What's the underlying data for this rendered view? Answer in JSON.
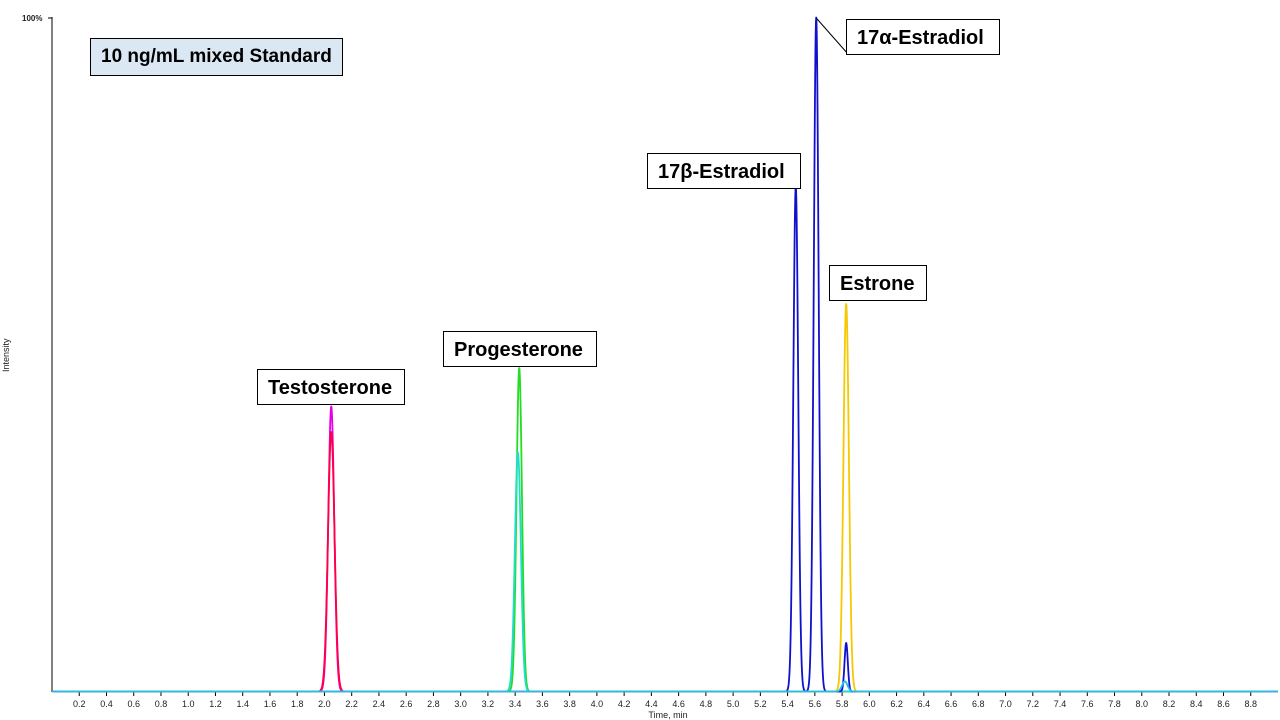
{
  "chart_data": {
    "type": "line",
    "title": "10 ng/mL mixed Standard",
    "xlabel": "Time, min",
    "ylabel": "Intensity",
    "ymax_label": "100%",
    "xlim": [
      0,
      9.0
    ],
    "ylim": [
      0,
      100
    ],
    "x_ticks": [
      0.2,
      0.4,
      0.6,
      0.8,
      1.0,
      1.2,
      1.4,
      1.6,
      1.8,
      2.0,
      2.2,
      2.4,
      2.6,
      2.8,
      3.0,
      3.2,
      3.4,
      3.6,
      3.8,
      4.0,
      4.2,
      4.4,
      4.6,
      4.8,
      5.0,
      5.2,
      5.4,
      5.6,
      5.8,
      6.0,
      6.2,
      6.4,
      6.6,
      6.8,
      7.0,
      7.2,
      7.4,
      7.6,
      7.8,
      8.0,
      8.2,
      8.4,
      8.6,
      8.8
    ],
    "x_tick_labels": [
      "0.2",
      "0.4",
      "0.6",
      "0.8",
      "1.0",
      "1.2",
      "1.4",
      "1.6",
      "1.8",
      "2.0",
      "2.2",
      "2.4",
      "2.6",
      "2.8",
      "3.0",
      "3.2",
      "3.4",
      "3.6",
      "3.8",
      "4.0",
      "4.2",
      "4.4",
      "4.6",
      "4.8",
      "5.0",
      "5.2",
      "5.4",
      "5.6",
      "5.8",
      "6.0",
      "6.2",
      "6.4",
      "6.6",
      "6.8",
      "7.0",
      "7.2",
      "7.4",
      "7.6",
      "7.8",
      "8.0",
      "8.2",
      "8.4",
      "8.6",
      "8.8"
    ],
    "grid": false,
    "series": [
      {
        "color": "#e600e6",
        "peaks": [
          {
            "rt": 2.05,
            "height": 42.3,
            "width": 0.022
          }
        ]
      },
      {
        "color": "#ff0040",
        "peaks": [
          {
            "rt": 2.05,
            "height": 38.5,
            "width": 0.024
          }
        ]
      },
      {
        "color": "#22dd22",
        "peaks": [
          {
            "rt": 3.43,
            "height": 48.0,
            "width": 0.02
          }
        ]
      },
      {
        "color": "#22ddcc",
        "peaks": [
          {
            "rt": 3.42,
            "height": 35.5,
            "width": 0.022
          }
        ]
      },
      {
        "color": "#1111cc",
        "peaks": [
          {
            "rt": 5.46,
            "height": 75.0,
            "width": 0.018
          },
          {
            "rt": 5.61,
            "height": 100.0,
            "width": 0.018
          },
          {
            "rt": 5.83,
            "height": 7.2,
            "width": 0.012
          }
        ]
      },
      {
        "color": "#f5c800",
        "peaks": [
          {
            "rt": 5.83,
            "height": 57.5,
            "width": 0.02
          }
        ]
      },
      {
        "color": "#22bbee",
        "peaks": [
          {
            "rt": 5.82,
            "height": 1.5,
            "width": 0.02
          }
        ]
      }
    ],
    "annotations": [
      {
        "label": "Testosterone",
        "rt": 2.05
      },
      {
        "label": "Progesterone",
        "rt": 3.43
      },
      {
        "label": "17β-Estradiol",
        "rt": 5.46
      },
      {
        "label": "17α-Estradiol",
        "rt": 5.61
      },
      {
        "label": "Estrone",
        "rt": 5.83
      }
    ]
  }
}
